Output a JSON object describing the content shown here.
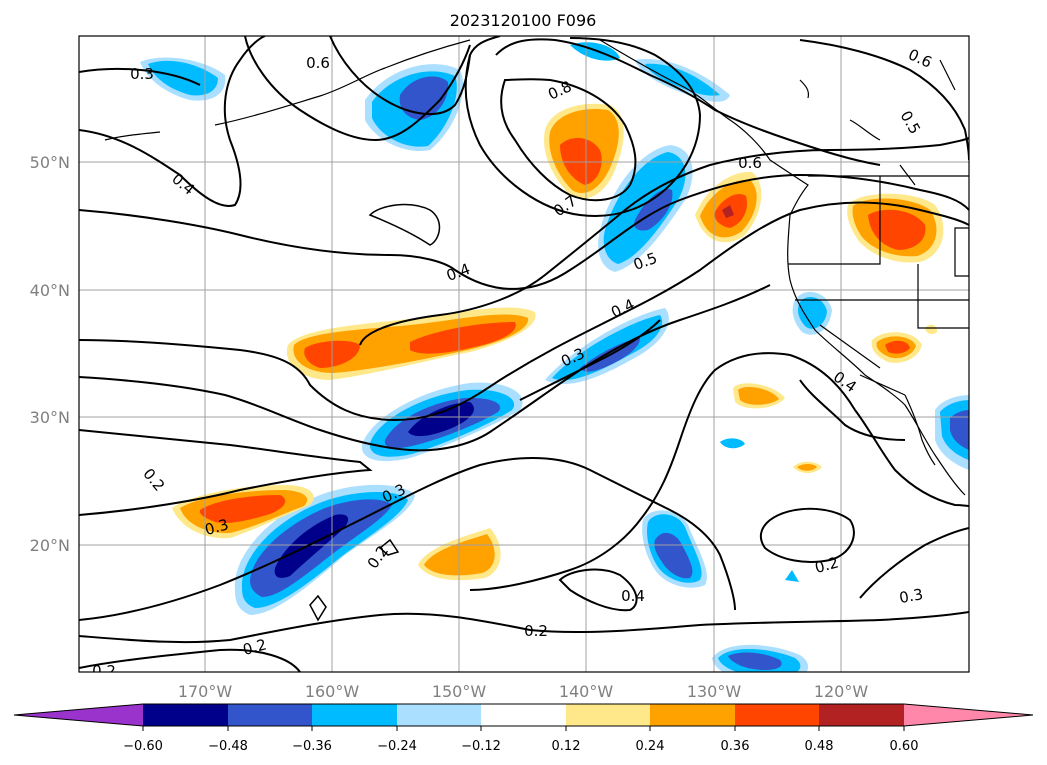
{
  "title": "2023120100 F096",
  "axes": {
    "lat_labels": [
      "50°N",
      "40°N",
      "30°N",
      "20°N"
    ],
    "lon_labels": [
      "170°W",
      "160°W",
      "150°W",
      "140°W",
      "130°W",
      "120°W"
    ]
  },
  "contour_labels": [
    "0.3",
    "0.6",
    "0.4",
    "0.8",
    "0.7",
    "0.4",
    "0.5",
    "0.6",
    "0.6",
    "0.5",
    "0.4",
    "0.3",
    "0.4",
    "0.2",
    "0.3",
    "0.3",
    "0.2",
    "0.2",
    "0.2",
    "0.4",
    "0.2",
    "0.3",
    "0.2"
  ],
  "colorbar": {
    "colors": [
      "#9933cc",
      "#00008b",
      "#3355cc",
      "#00bbff",
      "#aadfff",
      "#ffffff",
      "#ffe88a",
      "#ffa200",
      "#ff4500",
      "#b22222",
      "#ff88aa"
    ],
    "tick_labels": [
      "−0.60",
      "−0.48",
      "−0.36",
      "−0.24",
      "−0.12",
      "0.12",
      "0.24",
      "0.36",
      "0.48",
      "0.60"
    ]
  }
}
